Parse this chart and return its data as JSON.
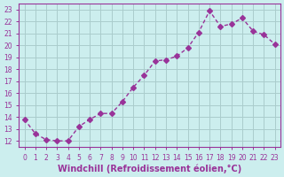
{
  "x": [
    0,
    1,
    2,
    3,
    4,
    5,
    6,
    7,
    8,
    9,
    10,
    11,
    12,
    13,
    14,
    15,
    16,
    17,
    18,
    19,
    20,
    21,
    22,
    23
  ],
  "y": [
    13.8,
    12.6,
    12.1,
    12.0,
    12.0,
    13.2,
    13.8,
    14.3,
    14.3,
    15.3,
    16.5,
    17.5,
    18.7,
    18.8,
    19.1,
    19.8,
    21.1,
    22.9,
    21.6,
    21.8,
    22.3,
    21.2,
    20.9,
    20.1
  ],
  "xlim": [
    -0.5,
    23.5
  ],
  "ylim": [
    11.5,
    23.5
  ],
  "yticks": [
    12,
    13,
    14,
    15,
    16,
    17,
    18,
    19,
    20,
    21,
    22,
    23
  ],
  "xticks": [
    0,
    1,
    2,
    3,
    4,
    5,
    6,
    7,
    8,
    9,
    10,
    11,
    12,
    13,
    14,
    15,
    16,
    17,
    18,
    19,
    20,
    21,
    22,
    23
  ],
  "xlabel": "Windchill (Refroidissement éolien,°C)",
  "line_color": "#993399",
  "marker": "D",
  "marker_size": 3,
  "bg_color": "#cceeee",
  "grid_color": "#aacccc",
  "tick_fontsize": 5.5,
  "xlabel_fontsize": 7
}
